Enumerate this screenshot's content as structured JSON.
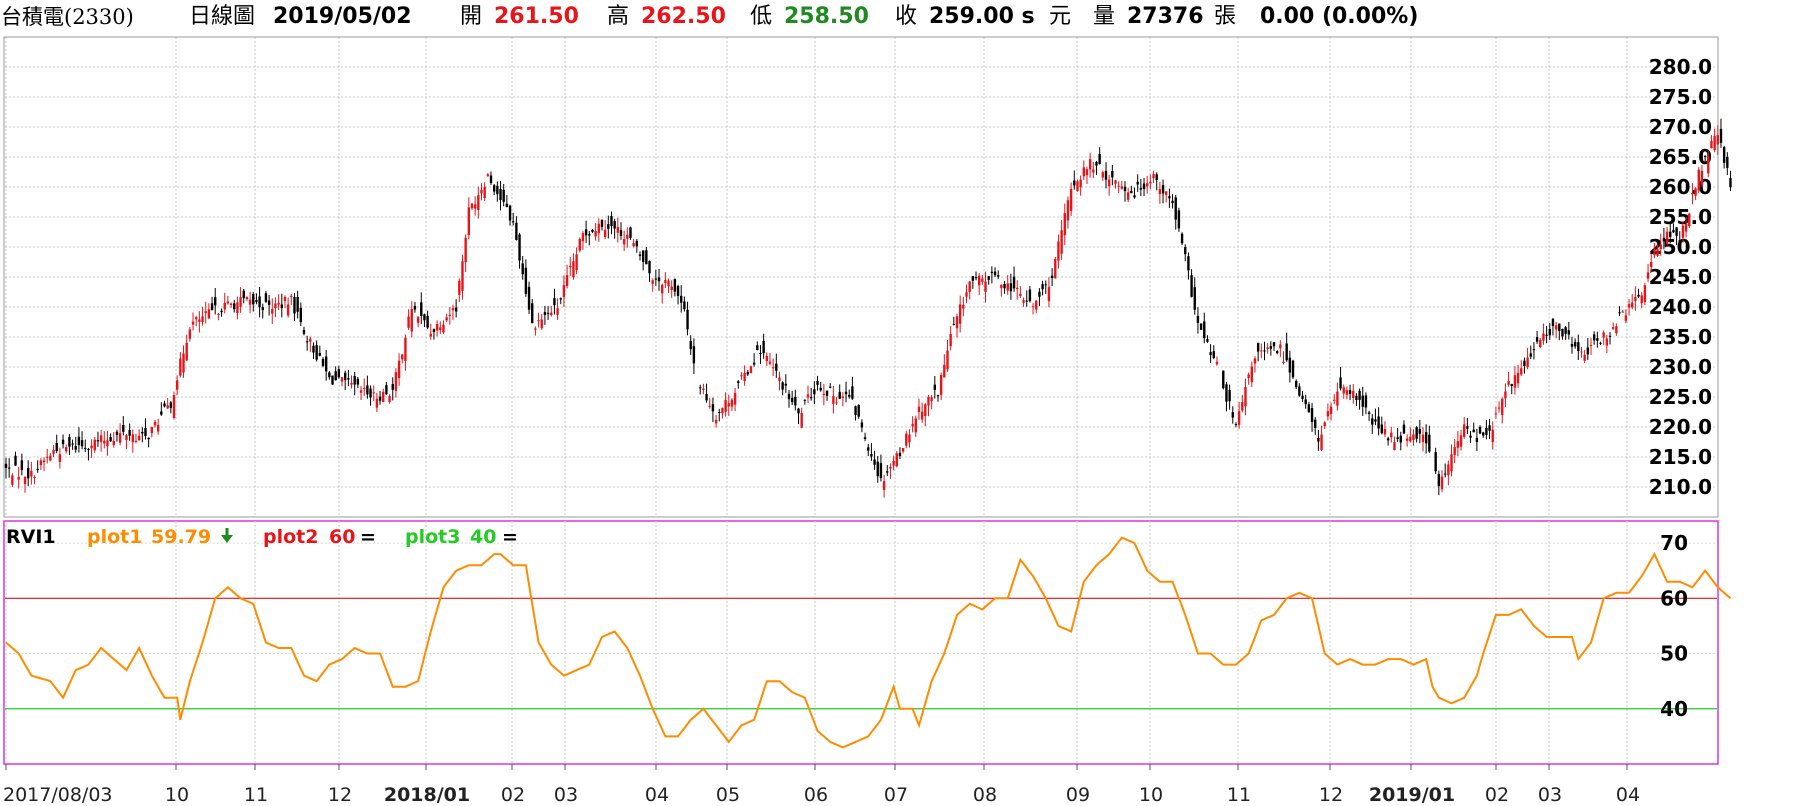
{
  "header": {
    "stock": "台積電(2330)",
    "chart_type": "日線圖",
    "date": "2019/05/02",
    "open_label": "開",
    "open": "261.50",
    "high_label": "高",
    "high": "262.50",
    "low_label": "低",
    "low": "258.50",
    "close_label": "收",
    "close": "259.00 s",
    "currency": "元",
    "volume_label": "量",
    "volume": "27376",
    "volume_unit": "張",
    "change": "0.00 (0.00%)"
  },
  "colors": {
    "up": "#e8141a",
    "down": "#000000",
    "plot1": "#ff8c00",
    "plot2": "#e8141a",
    "plot3": "#22cc22",
    "indicator_border": "#dd33dd"
  },
  "chart_data": [
    {
      "type": "candlestick",
      "ylim": [
        205,
        285
      ],
      "y_ticks": [
        "280.0",
        "275.0",
        "270.0",
        "265.0",
        "260.0",
        "255.0",
        "250.0",
        "245.0",
        "240.0",
        "235.0",
        "230.0",
        "225.0",
        "220.0",
        "215.0",
        "210.0"
      ],
      "x_tick_labels": [
        "2017/08/03",
        "10",
        "11",
        "12",
        "2018/01",
        "02",
        "03",
        "04",
        "05",
        "06",
        "07",
        "08",
        "09",
        "10",
        "11",
        "12",
        "2019/01",
        "02",
        "03",
        "04"
      ],
      "close_anchors": [
        [
          0,
          213
        ],
        [
          8,
          212
        ],
        [
          15,
          216
        ],
        [
          25,
          217
        ],
        [
          38,
          219
        ],
        [
          44,
          218
        ],
        [
          52,
          224
        ],
        [
          58,
          237
        ],
        [
          68,
          240
        ],
        [
          75,
          241
        ],
        [
          83,
          240
        ],
        [
          90,
          241
        ],
        [
          95,
          235
        ],
        [
          102,
          228
        ],
        [
          108,
          227
        ],
        [
          116,
          225
        ],
        [
          122,
          226
        ],
        [
          128,
          240
        ],
        [
          134,
          236
        ],
        [
          142,
          240
        ],
        [
          146,
          256
        ],
        [
          152,
          262
        ],
        [
          160,
          254
        ],
        [
          166,
          237
        ],
        [
          174,
          240
        ],
        [
          182,
          252
        ],
        [
          188,
          254
        ],
        [
          196,
          252
        ],
        [
          204,
          245
        ],
        [
          210,
          244
        ],
        [
          214,
          239
        ],
        [
          218,
          228
        ],
        [
          224,
          222
        ],
        [
          230,
          226
        ],
        [
          238,
          233
        ],
        [
          244,
          228
        ],
        [
          250,
          222
        ],
        [
          256,
          227
        ],
        [
          262,
          225
        ],
        [
          266,
          225
        ],
        [
          270,
          220
        ],
        [
          276,
          211
        ],
        [
          282,
          216
        ],
        [
          288,
          223
        ],
        [
          294,
          226
        ],
        [
          298,
          235
        ],
        [
          304,
          244
        ],
        [
          312,
          245
        ],
        [
          318,
          243
        ],
        [
          324,
          240
        ],
        [
          330,
          245
        ],
        [
          336,
          260
        ],
        [
          342,
          264
        ],
        [
          350,
          261
        ],
        [
          356,
          259
        ],
        [
          362,
          262
        ],
        [
          368,
          257
        ],
        [
          372,
          248
        ],
        [
          376,
          237
        ],
        [
          382,
          230
        ],
        [
          388,
          220
        ],
        [
          394,
          232
        ],
        [
          402,
          233
        ],
        [
          408,
          226
        ],
        [
          414,
          218
        ],
        [
          420,
          226
        ],
        [
          426,
          225
        ],
        [
          432,
          220
        ],
        [
          438,
          218
        ],
        [
          444,
          219
        ],
        [
          448,
          218
        ],
        [
          452,
          210
        ],
        [
          456,
          215
        ],
        [
          460,
          220
        ],
        [
          464,
          218
        ],
        [
          468,
          219
        ],
        [
          474,
          227
        ],
        [
          480,
          231
        ],
        [
          486,
          236
        ],
        [
          492,
          236
        ],
        [
          496,
          232
        ],
        [
          500,
          233
        ],
        [
          506,
          236
        ],
        [
          512,
          240
        ],
        [
          516,
          242
        ],
        [
          520,
          250
        ],
        [
          524,
          252
        ],
        [
          528,
          251
        ],
        [
          534,
          262
        ],
        [
          538,
          267
        ],
        [
          540,
          269
        ],
        [
          544,
          260
        ]
      ],
      "close_series_note": ""
    },
    {
      "type": "line",
      "indicator": "RVI1",
      "legend": [
        {
          "name": "plot1",
          "value": "59.79",
          "arrow": "down"
        },
        {
          "name": "plot2",
          "value": "60",
          "arrow": "="
        },
        {
          "name": "plot3",
          "value": "40",
          "arrow": "="
        }
      ],
      "ylim": [
        30,
        74
      ],
      "y_ticks": [
        "70",
        "60",
        "50",
        "40"
      ],
      "levels": [
        60,
        40
      ],
      "plot1_anchors": [
        [
          0,
          52
        ],
        [
          4,
          50
        ],
        [
          8,
          46
        ],
        [
          14,
          45
        ],
        [
          18,
          42
        ],
        [
          22,
          47
        ],
        [
          26,
          48
        ],
        [
          30,
          51
        ],
        [
          34,
          49
        ],
        [
          38,
          47
        ],
        [
          42,
          51
        ],
        [
          46,
          46
        ],
        [
          50,
          42
        ],
        [
          54,
          42
        ],
        [
          55,
          38
        ],
        [
          58,
          45
        ],
        [
          62,
          52
        ],
        [
          66,
          60
        ],
        [
          70,
          62
        ],
        [
          74,
          60
        ],
        [
          78,
          59
        ],
        [
          82,
          52
        ],
        [
          86,
          51
        ],
        [
          90,
          51
        ],
        [
          94,
          46
        ],
        [
          98,
          45
        ],
        [
          102,
          48
        ],
        [
          106,
          49
        ],
        [
          110,
          51
        ],
        [
          114,
          50
        ],
        [
          118,
          50
        ],
        [
          122,
          44
        ],
        [
          126,
          44
        ],
        [
          130,
          45
        ],
        [
          134,
          54
        ],
        [
          138,
          62
        ],
        [
          142,
          65
        ],
        [
          146,
          66
        ],
        [
          150,
          66
        ],
        [
          154,
          68
        ],
        [
          156,
          68
        ],
        [
          160,
          66
        ],
        [
          164,
          66
        ],
        [
          168,
          52
        ],
        [
          172,
          48
        ],
        [
          176,
          46
        ],
        [
          180,
          47
        ],
        [
          184,
          48
        ],
        [
          188,
          53
        ],
        [
          192,
          54
        ],
        [
          196,
          51
        ],
        [
          200,
          46
        ],
        [
          204,
          40
        ],
        [
          208,
          35
        ],
        [
          212,
          35
        ],
        [
          216,
          38
        ],
        [
          220,
          40
        ],
        [
          224,
          37
        ],
        [
          228,
          34
        ],
        [
          232,
          37
        ],
        [
          236,
          38
        ],
        [
          240,
          45
        ],
        [
          244,
          45
        ],
        [
          248,
          43
        ],
        [
          252,
          42
        ],
        [
          256,
          36
        ],
        [
          260,
          34
        ],
        [
          264,
          33
        ],
        [
          268,
          34
        ],
        [
          272,
          35
        ],
        [
          276,
          38
        ],
        [
          280,
          44
        ],
        [
          282,
          40
        ],
        [
          286,
          40
        ],
        [
          288,
          37
        ],
        [
          292,
          45
        ],
        [
          296,
          50
        ],
        [
          300,
          57
        ],
        [
          304,
          59
        ],
        [
          308,
          58
        ],
        [
          312,
          60
        ],
        [
          316,
          60
        ],
        [
          320,
          67
        ],
        [
          324,
          64
        ],
        [
          328,
          60
        ],
        [
          332,
          55
        ],
        [
          336,
          54
        ],
        [
          340,
          63
        ],
        [
          344,
          66
        ],
        [
          348,
          68
        ],
        [
          352,
          71
        ],
        [
          356,
          70
        ],
        [
          360,
          65
        ],
        [
          364,
          63
        ],
        [
          368,
          63
        ],
        [
          372,
          57
        ],
        [
          376,
          50
        ],
        [
          380,
          50
        ],
        [
          384,
          48
        ],
        [
          388,
          48
        ],
        [
          392,
          50
        ],
        [
          396,
          56
        ],
        [
          400,
          57
        ],
        [
          404,
          60
        ],
        [
          408,
          61
        ],
        [
          412,
          60
        ],
        [
          416,
          50
        ],
        [
          420,
          48
        ],
        [
          424,
          49
        ],
        [
          428,
          48
        ],
        [
          432,
          48
        ],
        [
          436,
          49
        ],
        [
          440,
          49
        ],
        [
          444,
          48
        ],
        [
          448,
          49
        ],
        [
          450,
          44
        ],
        [
          452,
          42
        ],
        [
          456,
          41
        ],
        [
          460,
          42
        ],
        [
          464,
          46
        ],
        [
          466,
          50
        ],
        [
          470,
          57
        ],
        [
          474,
          57
        ],
        [
          478,
          58
        ],
        [
          482,
          55
        ],
        [
          486,
          53
        ],
        [
          490,
          53
        ],
        [
          494,
          53
        ],
        [
          496,
          49
        ],
        [
          500,
          52
        ],
        [
          504,
          60
        ],
        [
          508,
          61
        ],
        [
          512,
          61
        ],
        [
          516,
          64
        ],
        [
          520,
          68
        ],
        [
          524,
          63
        ],
        [
          528,
          63
        ],
        [
          532,
          62
        ],
        [
          536,
          65
        ],
        [
          540,
          62
        ],
        [
          544,
          60
        ]
      ]
    }
  ]
}
